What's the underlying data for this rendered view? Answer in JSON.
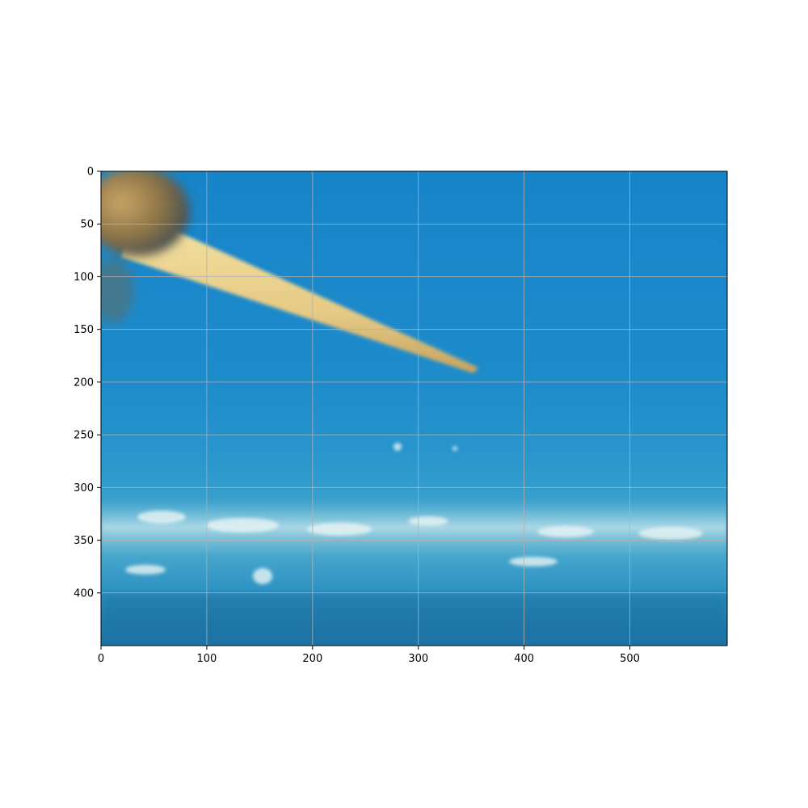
{
  "image": {
    "description_colors": {
      "water_top": "#1a86c8",
      "water_mid": "#1e8fcc",
      "band_light": "#4aa6cc",
      "floor_dark": "#1c76a6",
      "stick": "#e8cf8e",
      "stick_shadow": "#c9a865",
      "holder": "#8a7448"
    },
    "grid": true
  },
  "chart_data": {
    "type": "image",
    "title": "",
    "xlabel": "",
    "ylabel": "",
    "xlim": [
      0,
      592
    ],
    "ylim": [
      450,
      0
    ],
    "x_ticks": [
      0,
      100,
      200,
      300,
      400,
      500
    ],
    "y_ticks": [
      0,
      50,
      100,
      150,
      200,
      250,
      300,
      350,
      400
    ],
    "grid": true,
    "grid_color": "#b0b0b0"
  }
}
